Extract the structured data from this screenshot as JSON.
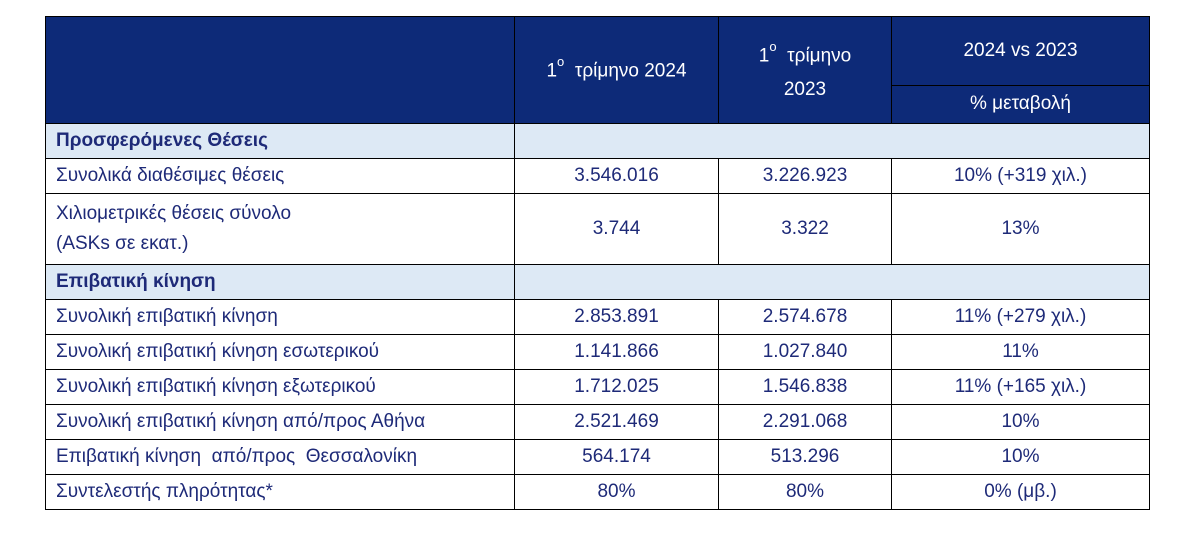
{
  "header": {
    "col2": {
      "sup": "ο",
      "text": "τρίμηνο 2024",
      "prefix": "1"
    },
    "col3": {
      "prefix": "1",
      "sup": "ο",
      "line1": "τρίμηνο",
      "line2": "2023"
    },
    "col4_top": "2024 vs 2023",
    "col4_sub": "% μεταβολή"
  },
  "sections": [
    {
      "title": "Προσφερόμενες Θέσεις",
      "rows": [
        {
          "label": "Συνολικά διαθέσιμες θέσεις",
          "q1_2024": "3.546.016",
          "q1_2023": "3.226.923",
          "change": "10%  (+319 χιλ.)"
        },
        {
          "label_line1": "Χιλιομετρικές θέσεις σύνολο",
          "label_line2": "(ASKs σε εκατ.)",
          "q1_2024": "3.744",
          "q1_2023": "3.322",
          "change": "13%"
        }
      ]
    },
    {
      "title": "Επιβατική κίνηση",
      "rows": [
        {
          "label": "Συνολική επιβατική κίνηση",
          "q1_2024": "2.853.891",
          "q1_2023": "2.574.678",
          "change": "11% (+279 χιλ.)"
        },
        {
          "label": "Συνολική επιβατική κίνηση εσωτερικού",
          "q1_2024": "1.141.866",
          "q1_2023": "1.027.840",
          "change": "11%"
        },
        {
          "label": "Συνολική επιβατική κίνηση εξωτερικού",
          "q1_2024": "1.712.025",
          "q1_2023": "1.546.838",
          "change": "11% (+165 χιλ.)"
        },
        {
          "label": "Συνολική επιβατική κίνηση από/προς Αθήνα",
          "q1_2024": "2.521.469",
          "q1_2023": "2.291.068",
          "change": "10%"
        },
        {
          "label": "Επιβατική κίνηση  από/προς  Θεσσαλονίκη",
          "q1_2024": "564.174",
          "q1_2023": "513.296",
          "change": "10%"
        },
        {
          "label": "Συντελεστής πληρότητας*",
          "q1_2024": "80%",
          "q1_2023": "80%",
          "change": "0% (μβ.)"
        }
      ]
    }
  ]
}
